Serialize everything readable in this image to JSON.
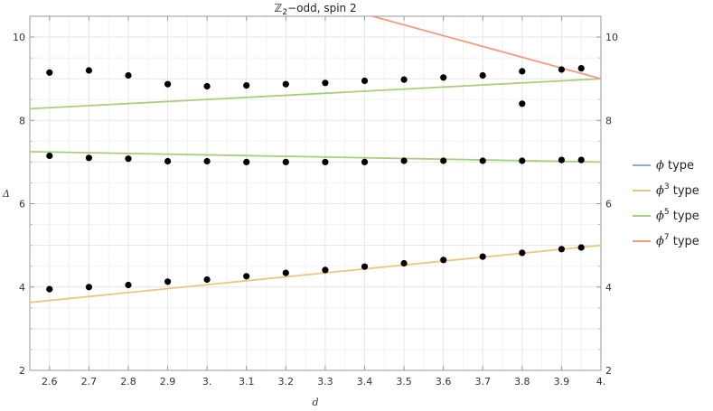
{
  "chart_data": {
    "type": "scatter",
    "title_symbol": "ℤ",
    "title_sub": "2",
    "title_rest": "−odd, spin 2",
    "xlabel": "d",
    "ylabel": "Δ",
    "xlim": [
      2.55,
      4.0
    ],
    "ylim": [
      2,
      10.5
    ],
    "x_ticks": [
      {
        "value": 2.6,
        "label": "2.6"
      },
      {
        "value": 2.7,
        "label": "2.7"
      },
      {
        "value": 2.8,
        "label": "2.8"
      },
      {
        "value": 2.9,
        "label": "2.9"
      },
      {
        "value": 3.0,
        "label": "3."
      },
      {
        "value": 3.1,
        "label": "3.1"
      },
      {
        "value": 3.2,
        "label": "3.2"
      },
      {
        "value": 3.3,
        "label": "3.3"
      },
      {
        "value": 3.4,
        "label": "3.4"
      },
      {
        "value": 3.5,
        "label": "3.5"
      },
      {
        "value": 3.6,
        "label": "3.6"
      },
      {
        "value": 3.7,
        "label": "3.7"
      },
      {
        "value": 3.8,
        "label": "3.8"
      },
      {
        "value": 3.9,
        "label": "3.9"
      },
      {
        "value": 4.0,
        "label": "4."
      }
    ],
    "y_ticks": [
      {
        "value": 2,
        "label": "2"
      },
      {
        "value": 4,
        "label": "4"
      },
      {
        "value": 6,
        "label": "6"
      },
      {
        "value": 8,
        "label": "8"
      },
      {
        "value": 10,
        "label": "10"
      }
    ],
    "grid": true,
    "legend_position": "right",
    "lines": [
      {
        "name": "type",
        "power": "",
        "color": "#8aaed6",
        "points": []
      },
      {
        "name": "type",
        "power": "3",
        "color": "#ebc77d",
        "points": [
          [
            2.55,
            3.63
          ],
          [
            4.0,
            5.0
          ]
        ]
      },
      {
        "name": "type",
        "power": "5",
        "color": "#a8cf7c",
        "points": [
          [
            2.55,
            8.28
          ],
          [
            4.0,
            9.0
          ]
        ]
      },
      {
        "name": "type",
        "power": "5",
        "color": "#a8cf7c",
        "points": [
          [
            2.55,
            7.25
          ],
          [
            4.0,
            7.0
          ]
        ]
      },
      {
        "name": "type",
        "power": "7",
        "color": "#ee9c7c",
        "points": [
          [
            3.42,
            10.5
          ],
          [
            4.0,
            9.0
          ]
        ]
      }
    ],
    "legend_symbol": "ϕ",
    "legend": [
      {
        "name": "type",
        "power": "",
        "color": "#8aaed6"
      },
      {
        "name": "type",
        "power": "3",
        "color": "#ebc77d"
      },
      {
        "name": "type",
        "power": "5",
        "color": "#a8cf7c"
      },
      {
        "name": "type",
        "power": "7",
        "color": "#ee9c7c"
      }
    ],
    "points": [
      [
        2.6,
        9.15
      ],
      [
        2.7,
        9.2
      ],
      [
        2.8,
        9.08
      ],
      [
        2.9,
        8.87
      ],
      [
        3.0,
        8.82
      ],
      [
        3.1,
        8.84
      ],
      [
        3.2,
        8.87
      ],
      [
        3.3,
        8.9
      ],
      [
        3.4,
        8.95
      ],
      [
        3.5,
        8.98
      ],
      [
        3.6,
        9.03
      ],
      [
        3.7,
        9.08
      ],
      [
        3.8,
        9.18
      ],
      [
        3.9,
        9.22
      ],
      [
        3.95,
        9.25
      ],
      [
        3.8,
        8.4
      ],
      [
        2.6,
        7.15
      ],
      [
        2.7,
        7.1
      ],
      [
        2.8,
        7.08
      ],
      [
        2.9,
        7.02
      ],
      [
        3.0,
        7.02
      ],
      [
        3.1,
        7.0
      ],
      [
        3.2,
        7.0
      ],
      [
        3.3,
        7.0
      ],
      [
        3.4,
        7.0
      ],
      [
        3.5,
        7.03
      ],
      [
        3.6,
        7.03
      ],
      [
        3.7,
        7.03
      ],
      [
        3.8,
        7.03
      ],
      [
        3.9,
        7.05
      ],
      [
        3.95,
        7.05
      ],
      [
        2.6,
        3.95
      ],
      [
        2.7,
        4.0
      ],
      [
        2.8,
        4.05
      ],
      [
        2.9,
        4.13
      ],
      [
        3.0,
        4.18
      ],
      [
        3.1,
        4.26
      ],
      [
        3.2,
        4.34
      ],
      [
        3.3,
        4.41
      ],
      [
        3.4,
        4.49
      ],
      [
        3.5,
        4.57
      ],
      [
        3.6,
        4.65
      ],
      [
        3.7,
        4.73
      ],
      [
        3.8,
        4.82
      ],
      [
        3.9,
        4.91
      ],
      [
        3.95,
        4.95
      ]
    ]
  }
}
